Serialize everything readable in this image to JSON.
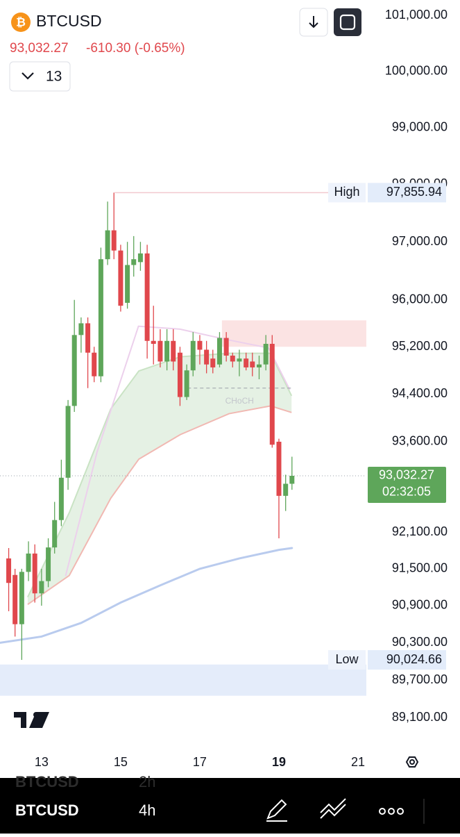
{
  "header": {
    "symbol": "BTCUSD",
    "price": "93,032.27",
    "change": "-610.30 (-0.65%)",
    "indicator_count": "13"
  },
  "bottom_bar": {
    "prev_symbol": "BTCUSD",
    "prev_interval": "2h",
    "symbol": "BTCUSD",
    "interval": "4h"
  },
  "chart_data": {
    "type": "candlestick",
    "up_color": "#5ea65a",
    "down_color": "#e0474c",
    "xlim": [
      11.95,
      21.21
    ],
    "xticks": [
      13,
      15,
      17,
      19,
      21
    ],
    "highlight_xtick": 19,
    "ylim": [
      88640,
      101280
    ],
    "log_scale": true,
    "yticks": [
      {
        "value": 101000,
        "label": "101,000.00"
      },
      {
        "value": 100000,
        "label": "100,000.00"
      },
      {
        "value": 99000,
        "label": "99,000.00"
      },
      {
        "value": 98000,
        "label": "98,000.00"
      },
      {
        "value": 97000,
        "label": "97,000.00"
      },
      {
        "value": 96000,
        "label": "96,000.00"
      },
      {
        "value": 95200,
        "label": "95,200.00"
      },
      {
        "value": 94400,
        "label": "94,400.00"
      },
      {
        "value": 93600,
        "label": "93,600.00"
      },
      {
        "value": 92100,
        "label": "92,100.00"
      },
      {
        "value": 91500,
        "label": "91,500.00"
      },
      {
        "value": 90900,
        "label": "90,900.00"
      },
      {
        "value": 90300,
        "label": "90,300.00"
      },
      {
        "value": 89700,
        "label": "89,700.00"
      },
      {
        "value": 89100,
        "label": "89,100.00"
      }
    ],
    "x": [
      12.17,
      12.33,
      12.5,
      12.67,
      12.83,
      13,
      13.17,
      13.33,
      13.5,
      13.67,
      13.83,
      14,
      14.17,
      14.33,
      14.5,
      14.67,
      14.83,
      15,
      15.17,
      15.33,
      15.5,
      15.67,
      15.83,
      16,
      16.17,
      16.33,
      16.5,
      16.67,
      16.83,
      17,
      17.17,
      17.33,
      17.5,
      17.67,
      17.83,
      18,
      18.17,
      18.33,
      18.5,
      18.67,
      18.83,
      19,
      19.17,
      19.33
    ],
    "open": [
      91670,
      91400,
      90600,
      91450,
      91750,
      91100,
      91300,
      91850,
      92300,
      93000,
      94200,
      95400,
      95600,
      95100,
      94700,
      96700,
      97200,
      96850,
      95950,
      96600,
      96650,
      96800,
      95300,
      95300,
      94950,
      95300,
      95100,
      94350,
      94800,
      95300,
      95150,
      95000,
      94900,
      95350,
      95050,
      94950,
      95000,
      94950,
      94850,
      94900,
      95250,
      93600,
      92700,
      92900
    ],
    "high": [
      91840,
      91500,
      91500,
      91950,
      91900,
      91500,
      92000,
      92600,
      93300,
      94300,
      96000,
      95700,
      95700,
      95200,
      96900,
      97700,
      97855.94,
      96950,
      97000,
      97100,
      97000,
      96950,
      95900,
      95500,
      95500,
      95500,
      95200,
      94900,
      95450,
      95400,
      95300,
      95150,
      95450,
      95450,
      95100,
      95150,
      95100,
      95100,
      95050,
      95400,
      95400,
      93650,
      93050,
      93350
    ],
    "low": [
      90810,
      90400,
      90025,
      91300,
      90950,
      90900,
      91200,
      91750,
      92200,
      92800,
      94100,
      95100,
      94500,
      94600,
      94600,
      96600,
      96700,
      95800,
      95850,
      96400,
      96500,
      95000,
      94900,
      94850,
      94800,
      94800,
      94200,
      94300,
      94700,
      94900,
      94750,
      94750,
      94850,
      94950,
      94850,
      94700,
      94800,
      94700,
      94650,
      94800,
      93500,
      92000,
      92450,
      92800
    ],
    "close": [
      91270,
      90600,
      91450,
      91750,
      91100,
      91300,
      91850,
      92300,
      93000,
      94200,
      95400,
      95600,
      95100,
      94700,
      96700,
      97200,
      96850,
      95900,
      96600,
      96700,
      96800,
      95300,
      95250,
      94950,
      95300,
      94950,
      94350,
      94800,
      95300,
      95150,
      94900,
      94850,
      95350,
      95050,
      94950,
      95000,
      94850,
      94850,
      94900,
      95250,
      93550,
      92700,
      92900,
      93032.27
    ],
    "cloud": {
      "fill": "rgba(94,166,90,0.16)",
      "upper_color": "#c9e3c4",
      "lower_color": "#f1b8b2",
      "x": [
        12.65,
        13.7,
        14.75,
        15.46,
        16.51,
        17.74,
        18.79,
        19.32
      ],
      "upper": [
        91040,
        92420,
        94150,
        94790,
        95030,
        95090,
        95090,
        94370
      ],
      "lower": [
        90920,
        91390,
        92660,
        93310,
        93720,
        94070,
        94200,
        94090
      ]
    },
    "overlays": [
      {
        "color": "#b9cbee",
        "width": 3,
        "x": [
          11.95,
          13,
          14,
          15,
          16,
          17,
          18,
          19,
          19.33
        ],
        "values": [
          90300,
          90400,
          90620,
          90950,
          91230,
          91500,
          91670,
          91810,
          91840
        ]
      },
      {
        "color": "#ecd0ec",
        "width": 2,
        "x": [
          13.61,
          14.4,
          15.45,
          16.5,
          17.7,
          18.74,
          19.27
        ],
        "values": [
          91390,
          93420,
          95550,
          95500,
          95320,
          95180,
          94480
        ]
      }
    ],
    "zones": [
      {
        "color": "rgba(230,80,80,0.16)",
        "range": [
          95200,
          95650
        ],
        "from": 17.56
      },
      {
        "color": "rgba(120,160,230,0.2)",
        "range": [
          89450,
          89950
        ]
      }
    ],
    "choch": {
      "label": "CHoCH",
      "value": 94500,
      "x": [
        16.69,
        19.32
      ]
    },
    "high_marker": {
      "text": "High",
      "value": 97855.94,
      "label": "97,855.94",
      "from": 14.85
    },
    "low_marker": {
      "text": "Low",
      "value": 90024.66,
      "label": "90,024.66"
    },
    "price_tag": {
      "value": 93032.27,
      "label": "93,032.27",
      "countdown": "02:32:05"
    }
  }
}
